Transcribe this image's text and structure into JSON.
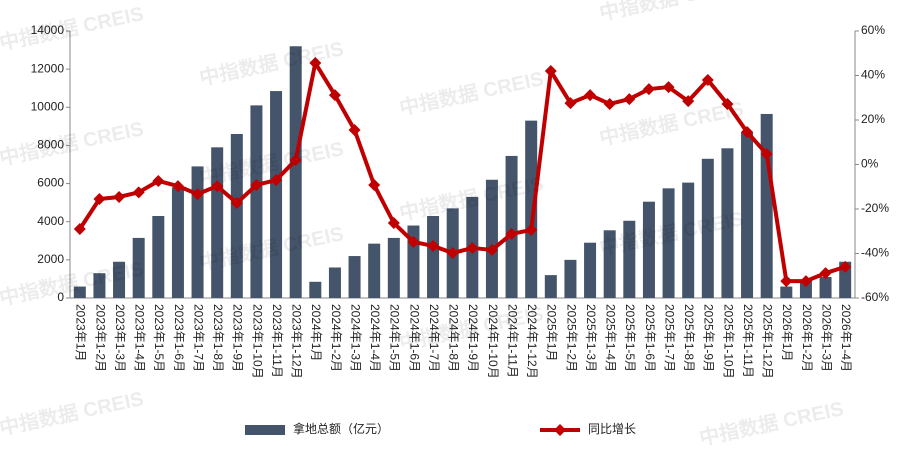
{
  "chart_data": {
    "type": "bar-line",
    "watermark": "中指数据 CREIS",
    "categories": [
      "2023年1月",
      "2023年1-2月",
      "2023年1-3月",
      "2023年1-4月",
      "2023年1-5月",
      "2023年1-6月",
      "2023年1-7月",
      "2023年1-8月",
      "2023年1-9月",
      "2023年1-10月",
      "2023年1-11月",
      "2023年1-12月",
      "2024年1月",
      "2024年1-2月",
      "2024年1-3月",
      "2024年1-4月",
      "2024年1-5月",
      "2024年1-6月",
      "2024年1-7月",
      "2024年1-8月",
      "2024年1-9月",
      "2024年1-10月",
      "2024年1-11月",
      "2024年1-12月",
      "2025年1月",
      "2025年1-2月",
      "2025年1-3月",
      "2025年1-4月",
      "2025年1-5月",
      "2025年1-6月",
      "2025年1-7月",
      "2025年1-8月",
      "2025年1-9月",
      "2025年1-10月",
      "2025年1-11月",
      "2025年1-12月",
      "2026年1月",
      "2026年1-2月",
      "2026年1-3月",
      "2026年1-4月"
    ],
    "series": [
      {
        "name": "拿地总额（亿元）",
        "type": "bar",
        "color": "#44546a",
        "values": [
          600,
          1300,
          1900,
          3150,
          4300,
          5800,
          6900,
          7900,
          8600,
          10100,
          10850,
          13200,
          850,
          1600,
          2200,
          2850,
          3150,
          3800,
          4300,
          4700,
          5300,
          6200,
          7450,
          9300,
          1200,
          2000,
          2900,
          3550,
          4050,
          5050,
          5750,
          6050,
          7300,
          7850,
          8700,
          9650,
          600,
          900,
          1100,
          1900
        ]
      },
      {
        "name": "同比增长",
        "type": "line",
        "axis": "y2",
        "color": "#c00000",
        "values": [
          -29,
          -15.5,
          -14.6,
          -12.5,
          -7.4,
          -9.7,
          -13.3,
          -9.7,
          -17.3,
          -9.2,
          -7,
          2,
          45.6,
          31.2,
          15.5,
          -9.2,
          -26.3,
          -34.8,
          -36.6,
          -39.8,
          -37.5,
          -38.4,
          -31.2,
          -29.4,
          42,
          27.6,
          31.2,
          27.2,
          29.4,
          33.9,
          34.8,
          28.5,
          38,
          27.2,
          14.6,
          4.7,
          -52.4,
          -52.4,
          -48.8,
          -46
        ]
      }
    ],
    "ylim": [
      0,
      14000
    ],
    "yticks": [
      0,
      2000,
      4000,
      6000,
      8000,
      10000,
      12000,
      14000
    ],
    "y2lim": [
      -60,
      60
    ],
    "y2ticks": [
      {
        "value": -60,
        "label": "-60%"
      },
      {
        "value": -40,
        "label": "-40%"
      },
      {
        "value": -20,
        "label": "-20%"
      },
      {
        "value": 0,
        "label": "0%"
      },
      {
        "value": 20,
        "label": "20%"
      },
      {
        "value": 40,
        "label": "40%"
      },
      {
        "value": 60,
        "label": "60%"
      }
    ],
    "grid": false,
    "legend": "bottom"
  }
}
